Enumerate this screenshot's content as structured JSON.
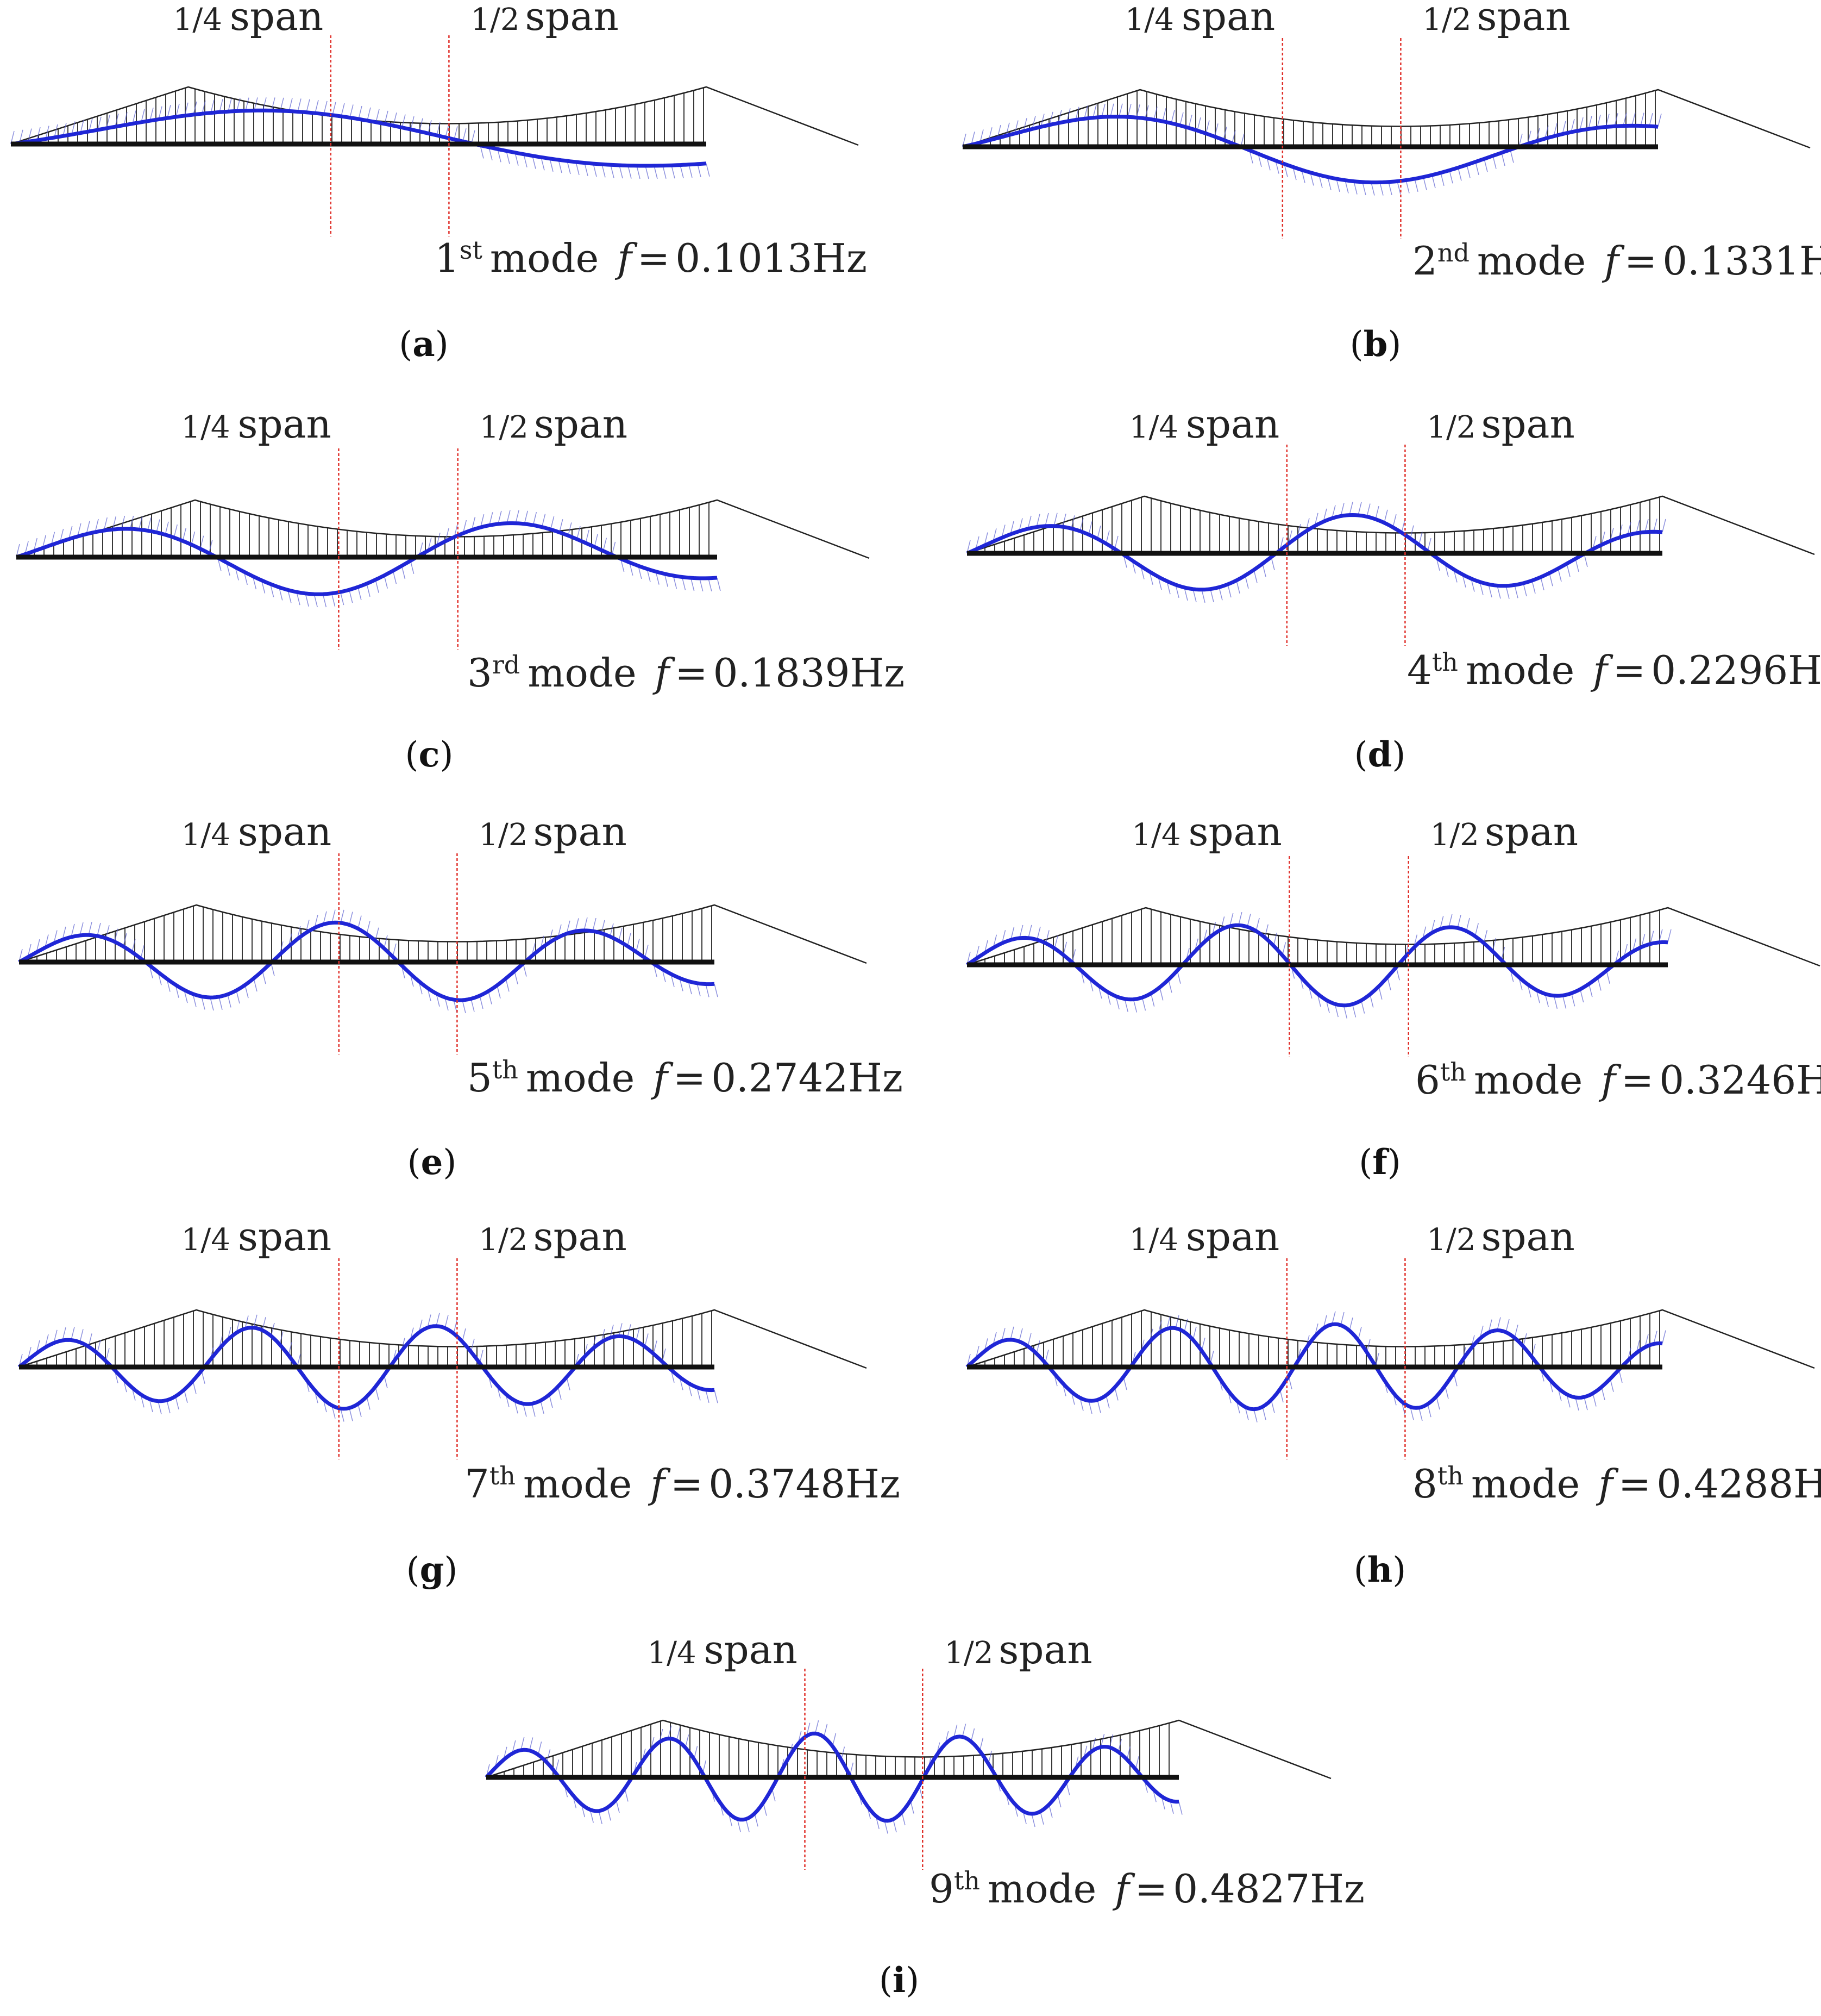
{
  "figure": {
    "quarter_label": {
      "num": "1/4",
      "word": "span"
    },
    "half_label": {
      "num": "1/2",
      "word": "span"
    },
    "mode_word": "mode",
    "freq_symbol": "f",
    "eq_sign": "=",
    "unit": "Hz",
    "colors": {
      "mode_shape": "#1f26d6",
      "hatch": "#5a5fd0",
      "section_line": "#e0302a",
      "deck": "#111111",
      "cable": "#222222"
    }
  },
  "panels": [
    {
      "letter": "a",
      "ordinal": "1",
      "suffix": "st",
      "freq": "0.1013"
    },
    {
      "letter": "b",
      "ordinal": "2",
      "suffix": "nd",
      "freq": "0.1331"
    },
    {
      "letter": "c",
      "ordinal": "3",
      "suffix": "rd",
      "freq": "0.1839"
    },
    {
      "letter": "d",
      "ordinal": "4",
      "suffix": "th",
      "freq": "0.2296"
    },
    {
      "letter": "e",
      "ordinal": "5",
      "suffix": "th",
      "freq": "0.2742"
    },
    {
      "letter": "f",
      "ordinal": "6",
      "suffix": "th",
      "freq": "0.3246"
    },
    {
      "letter": "g",
      "ordinal": "7",
      "suffix": "th",
      "freq": "0.3748"
    },
    {
      "letter": "h",
      "ordinal": "8",
      "suffix": "th",
      "freq": "0.4288"
    },
    {
      "letter": "i",
      "ordinal": "9",
      "suffix": "th",
      "freq": "0.4827"
    }
  ]
}
